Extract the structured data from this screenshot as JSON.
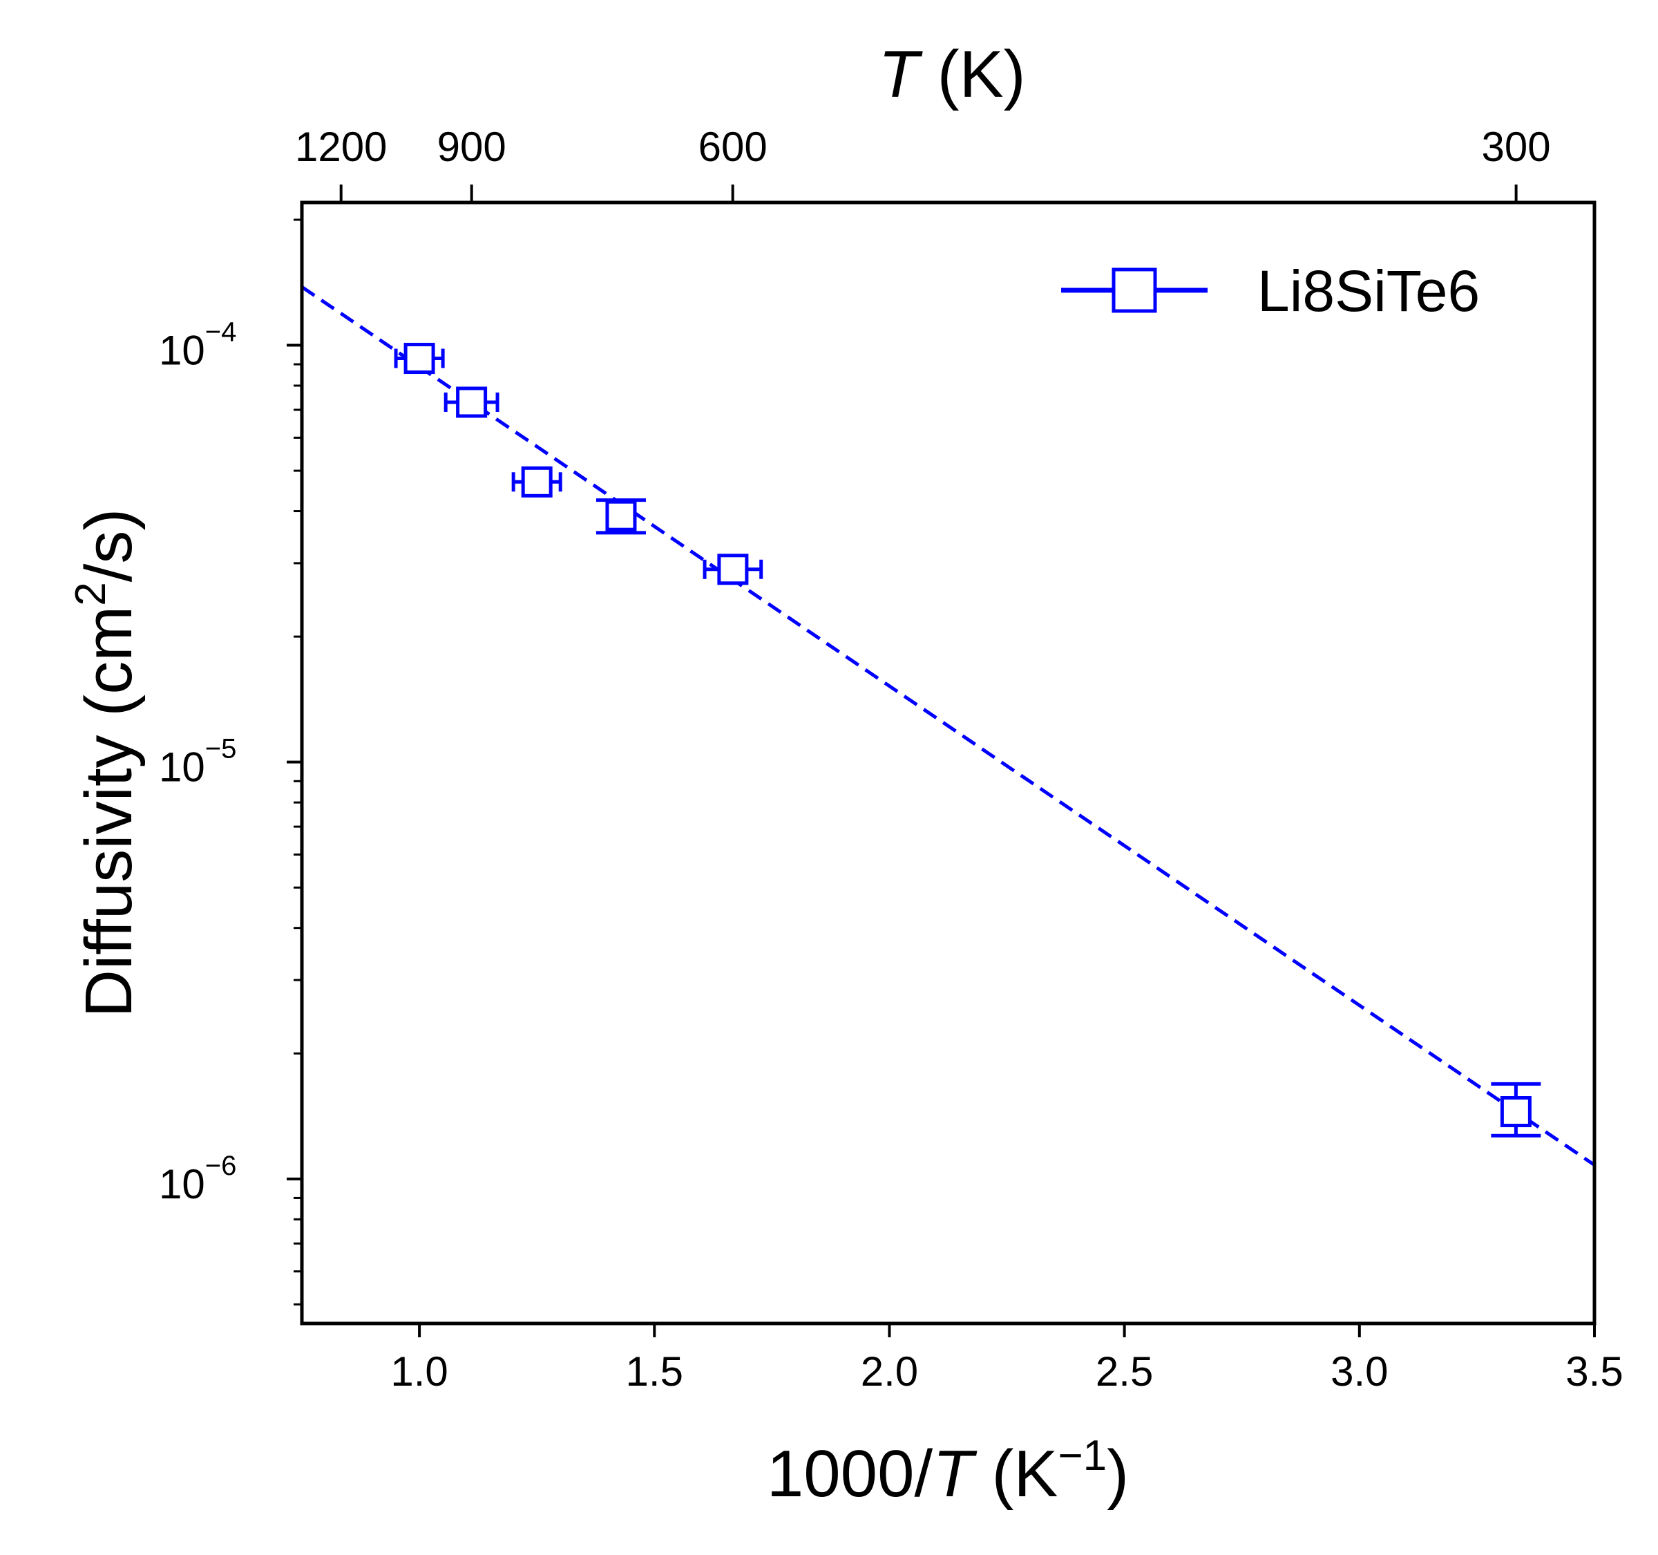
{
  "chart_data": {
    "type": "scatter",
    "title": "",
    "xlabel": {
      "pre": "1000/",
      "italic": "T",
      "post": " (K",
      "sup": "−1",
      "close": ")"
    },
    "ylabel": {
      "pre": "Diffusivity (cm",
      "sup": "2",
      "post": "/s)"
    },
    "top_xlabel": {
      "italic": "T",
      "post": " (K)"
    },
    "x_scale": "linear",
    "y_scale": "log",
    "xlim": [
      0.75,
      3.5
    ],
    "ylim": [
      4.5e-07,
      0.00022
    ],
    "x_ticks": [
      1.0,
      1.5,
      2.0,
      2.5,
      3.0,
      3.5
    ],
    "x_tick_labels": [
      "1.0",
      "1.5",
      "2.0",
      "2.5",
      "3.0",
      "3.5"
    ],
    "y_major_ticks": [
      1e-06,
      1e-05,
      0.0001
    ],
    "y_tick_labels": [
      {
        "base": "10",
        "exp": "−6"
      },
      {
        "base": "10",
        "exp": "−5"
      },
      {
        "base": "10",
        "exp": "−4"
      }
    ],
    "top_ticks_T": [
      1200,
      900,
      600,
      300
    ],
    "top_tick_labels": [
      "1200",
      "900",
      "600",
      "300"
    ],
    "grid": false,
    "legend_position": "top-right",
    "series": [
      {
        "name": "Li8SiTe6",
        "color": "#0000ff",
        "marker": "open-square",
        "x": [
          1.0,
          1.111,
          1.25,
          1.429,
          1.667,
          3.333
        ],
        "y": [
          9.3e-05,
          7.3e-05,
          4.7e-05,
          3.9e-05,
          2.9e-05,
          1.45e-06
        ],
        "x_err": [
          0.05,
          0.055,
          0.05,
          0.0,
          0.06,
          0.0
        ],
        "y_err_low": [
          0,
          0,
          0,
          3.5e-06,
          0,
          1.8e-07
        ],
        "y_err_high": [
          0,
          0,
          0,
          3.5e-06,
          0,
          2.4e-07
        ]
      }
    ],
    "fit_line": {
      "style": "dashed",
      "color": "#0000ff",
      "x": [
        0.75,
        3.5
      ],
      "y": [
        0.000138,
        1.08e-06
      ]
    }
  }
}
